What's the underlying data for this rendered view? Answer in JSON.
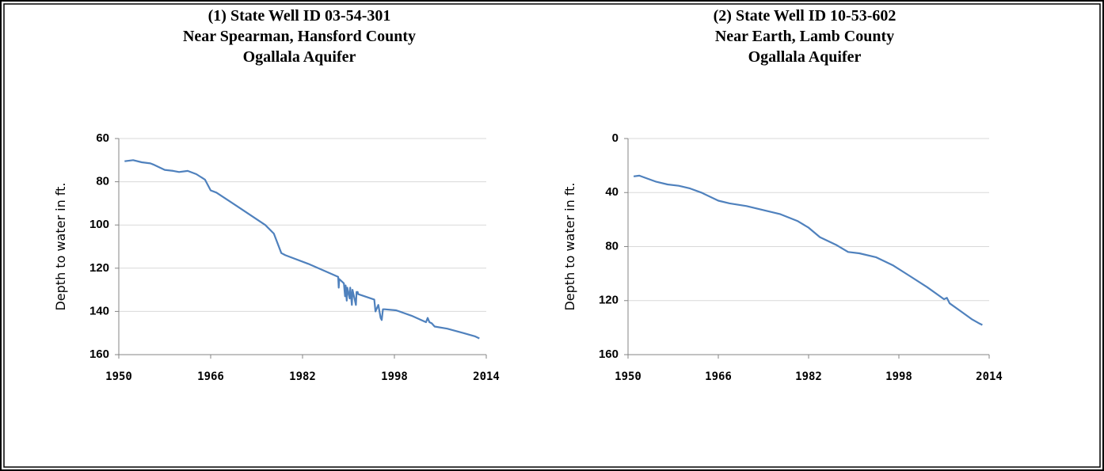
{
  "chart_data": [
    {
      "type": "line",
      "title": [
        "(1) State Well ID 03-54-301",
        "Near Spearman, Hansford County",
        "Ogallala Aquifer"
      ],
      "y_label": "Depth to water in ft.",
      "x": [
        1951,
        1952.5,
        1954,
        1955.5,
        1956,
        1958,
        1959.5,
        1960.5,
        1962,
        1963.5,
        1965,
        1966,
        1967,
        1971,
        1975.5,
        1977,
        1978.3,
        1979,
        1983,
        1988.2,
        1988.3,
        1988.4,
        1989.2,
        1989.4,
        1989.5,
        1989.7,
        1989.8,
        1990.2,
        1990.3,
        1990.6,
        1990.7,
        1991.3,
        1991.4,
        1991.6,
        1991.7,
        1994.5,
        1994.7,
        1995.2,
        1995.6,
        1995.8,
        1996,
        1996.3,
        1998.3,
        2001,
        2003.5,
        2003.8,
        2004.1,
        2004.5,
        2005,
        2007.2,
        2010,
        2012,
        2012.8
      ],
      "values": [
        70.5,
        70,
        71,
        71.5,
        72,
        74.5,
        75,
        75.5,
        75,
        76.5,
        79,
        84,
        85,
        92,
        100,
        104,
        113,
        114,
        118,
        124,
        129,
        125,
        127,
        133,
        128,
        135,
        129,
        134,
        129,
        137,
        130,
        137,
        131,
        131,
        132,
        134.5,
        140,
        137,
        143,
        144,
        139,
        139,
        139.5,
        142,
        145,
        143,
        145,
        145.5,
        147,
        148,
        150,
        151.5,
        152.5
      ],
      "color": "#4f81bd",
      "xlim": [
        1950,
        2014
      ],
      "xticks": [
        1950,
        1966,
        1982,
        1998,
        2014
      ],
      "ylim": [
        60,
        160
      ],
      "yticks": [
        60,
        80,
        100,
        120,
        140,
        160
      ],
      "y_inverted": true,
      "grid": true
    },
    {
      "type": "line",
      "title": [
        "(2) State Well ID 10-53-602",
        "Near Earth, Lamb County",
        "Ogallala Aquifer"
      ],
      "y_label": "Depth to water in ft.",
      "x": [
        1951,
        1952,
        1953,
        1955,
        1957,
        1959,
        1961,
        1963,
        1966,
        1968,
        1971,
        1974,
        1977,
        1980,
        1982,
        1984,
        1987,
        1989,
        1991,
        1994,
        1997,
        2000,
        2003,
        2005,
        2006,
        2006.5,
        2007,
        2009,
        2011,
        2012.3,
        2012.8
      ],
      "values": [
        28,
        27.5,
        29,
        32,
        34,
        35,
        37,
        40,
        46,
        48,
        50,
        53,
        56,
        61,
        66,
        73,
        79,
        84,
        85,
        88,
        94,
        102,
        110,
        116,
        119,
        118,
        122,
        128,
        134,
        137,
        138
      ],
      "color": "#4f81bd",
      "xlim": [
        1950,
        2014
      ],
      "xticks": [
        1950,
        1966,
        1982,
        1998,
        2014
      ],
      "ylim": [
        0,
        160
      ],
      "yticks": [
        0,
        40,
        80,
        120,
        160
      ],
      "y_inverted": true,
      "grid": true
    }
  ]
}
